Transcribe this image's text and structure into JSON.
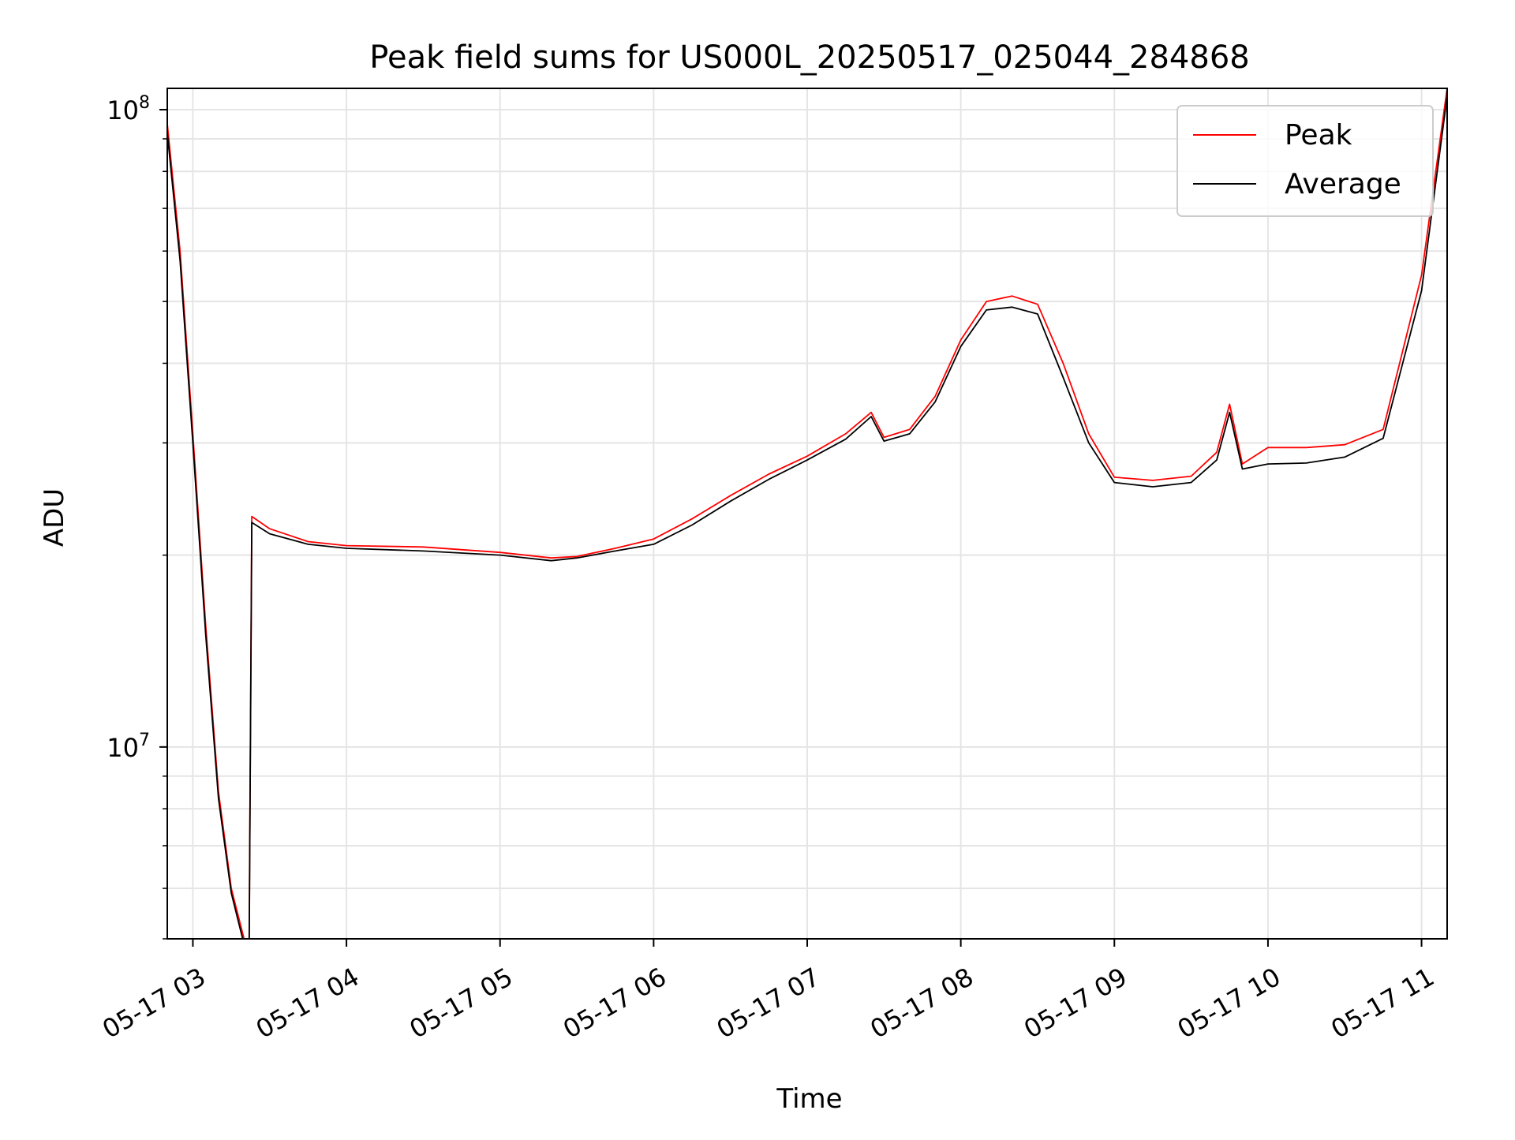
{
  "chart_data": {
    "type": "line",
    "title": "Peak field sums for US000L_20250517_025044_284868",
    "xlabel": "Time",
    "ylabel": "ADU",
    "yscale": "log",
    "xlim": [
      "05-17 02:50",
      "05-17 11:10"
    ],
    "ylim": [
      5000000,
      108000000
    ],
    "x_ticks": [
      "05-17 03",
      "05-17 04",
      "05-17 05",
      "05-17 06",
      "05-17 07",
      "05-17 08",
      "05-17 09",
      "05-17 10",
      "05-17 11"
    ],
    "y_ticks": [
      {
        "base": "10",
        "exp": "7",
        "value": 10000000
      },
      {
        "base": "10",
        "exp": "8",
        "value": 100000000
      }
    ],
    "grid": true,
    "legend_position": "top-right",
    "colors": {
      "peak": "#ff0000",
      "average": "#000000",
      "grid": "#e5e5e5"
    },
    "x": [
      "05-17 02:50",
      "05-17 02:55",
      "05-17 03:00",
      "05-17 03:05",
      "05-17 03:10",
      "05-17 03:15",
      "05-17 03:20",
      "05-17 03:22",
      "05-17 03:23",
      "05-17 03:30",
      "05-17 03:45",
      "05-17 04:00",
      "05-17 04:30",
      "05-17 05:00",
      "05-17 05:20",
      "05-17 05:30",
      "05-17 05:45",
      "05-17 06:00",
      "05-17 06:15",
      "05-17 06:30",
      "05-17 06:45",
      "05-17 07:00",
      "05-17 07:15",
      "05-17 07:25",
      "05-17 07:30",
      "05-17 07:40",
      "05-17 07:50",
      "05-17 08:00",
      "05-17 08:10",
      "05-17 08:20",
      "05-17 08:30",
      "05-17 08:40",
      "05-17 08:50",
      "05-17 09:00",
      "05-17 09:15",
      "05-17 09:30",
      "05-17 09:40",
      "05-17 09:45",
      "05-17 09:50",
      "05-17 10:00",
      "05-17 10:15",
      "05-17 10:30",
      "05-17 10:45",
      "05-17 11:00",
      "05-17 11:10"
    ],
    "series": [
      {
        "name": "Peak",
        "values": [
          95000000,
          60000000,
          31000000,
          15500000,
          8500000,
          6000000,
          5000000,
          5000000,
          23000000,
          22000000,
          21000000,
          20700000,
          20600000,
          20200000,
          19800000,
          19900000,
          20500000,
          21200000,
          22800000,
          24800000,
          26800000,
          28600000,
          31000000,
          33500000,
          30600000,
          31500000,
          35500000,
          43500000,
          50000000,
          51000000,
          49500000,
          40000000,
          31000000,
          26500000,
          26200000,
          26600000,
          29000000,
          34500000,
          27800000,
          29500000,
          29500000,
          29800000,
          31500000,
          55000000,
          108000000
        ]
      },
      {
        "name": "Average",
        "values": [
          92000000,
          58000000,
          30000000,
          15000000,
          8300000,
          5900000,
          4900000,
          4900000,
          22500000,
          21600000,
          20800000,
          20500000,
          20300000,
          20000000,
          19600000,
          19800000,
          20300000,
          20800000,
          22300000,
          24300000,
          26300000,
          28200000,
          30400000,
          33000000,
          30200000,
          31000000,
          34800000,
          42500000,
          48500000,
          49000000,
          47800000,
          38000000,
          30000000,
          26000000,
          25600000,
          26000000,
          28200000,
          33500000,
          27300000,
          27800000,
          27900000,
          28500000,
          30500000,
          52000000,
          105000000
        ]
      }
    ]
  }
}
